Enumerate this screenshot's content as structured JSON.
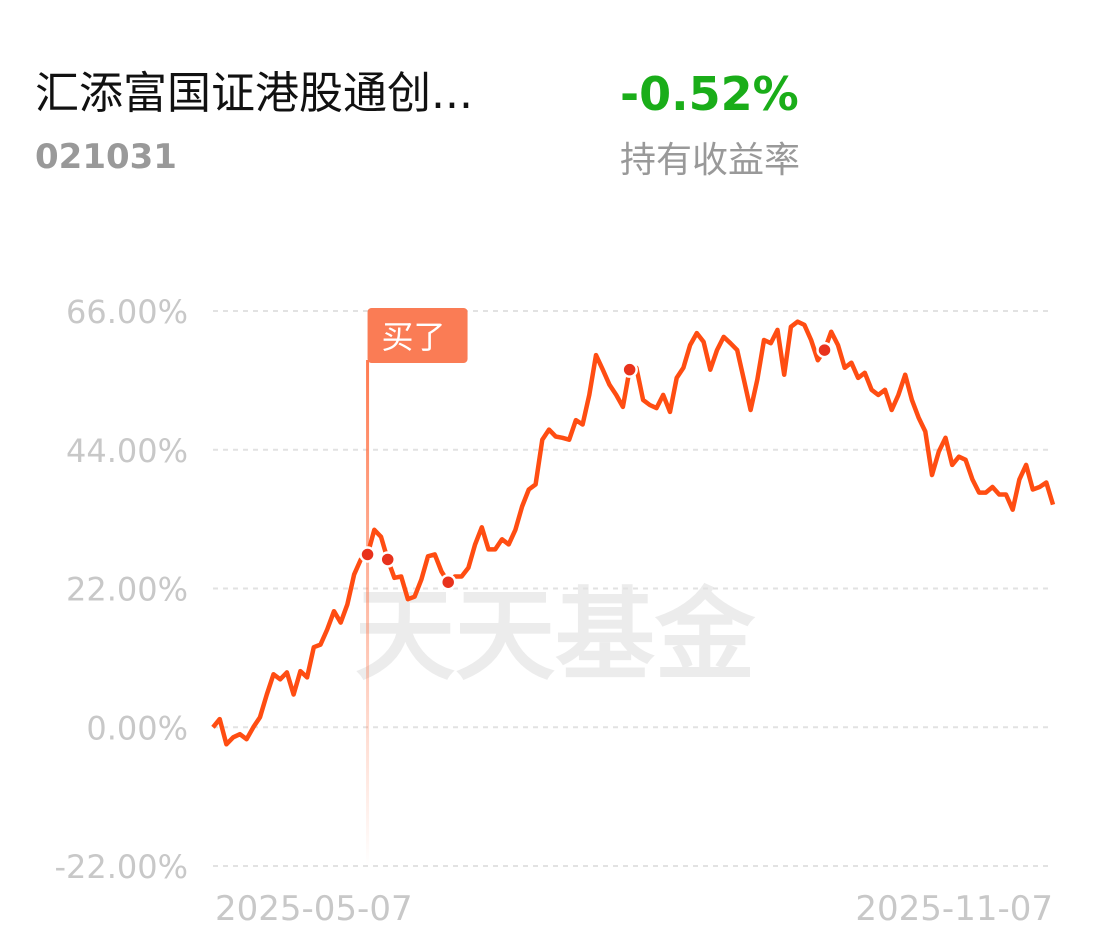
{
  "header": {
    "title": "汇添富国证港股通创...",
    "code": "021031",
    "return": "-0.52%",
    "return_label": "持有收益率"
  },
  "chart_data": {
    "type": "line",
    "watermark": "天天基金",
    "buy_label": "买了",
    "buy_index": 23,
    "trade_points": [
      23,
      26,
      35,
      62,
      91
    ],
    "color": "#ff4d12",
    "grid": true,
    "ylim": [
      -22,
      66
    ],
    "yticks": [
      {
        "value": 66,
        "label": "66.00%"
      },
      {
        "value": 44,
        "label": "44.00%"
      },
      {
        "value": 22,
        "label": "22.00%"
      },
      {
        "value": 0,
        "label": "0.00%"
      },
      {
        "value": -22,
        "label": "-22.00%"
      }
    ],
    "categories": [
      "2025-05-07",
      null,
      null,
      null,
      null,
      null,
      null,
      null,
      null,
      null,
      null,
      null,
      null,
      null,
      null,
      null,
      null,
      null,
      null,
      null,
      null,
      null,
      null,
      null,
      null,
      null,
      null,
      null,
      null,
      null,
      null,
      null,
      null,
      null,
      null,
      null,
      null,
      null,
      null,
      null,
      null,
      null,
      null,
      null,
      null,
      null,
      null,
      null,
      null,
      null,
      null,
      null,
      null,
      null,
      null,
      null,
      null,
      null,
      null,
      null,
      null,
      null,
      null,
      null,
      null,
      null,
      null,
      null,
      null,
      null,
      null,
      null,
      null,
      null,
      null,
      null,
      null,
      null,
      null,
      null,
      null,
      null,
      null,
      null,
      null,
      null,
      null,
      null,
      null,
      null,
      null,
      null,
      null,
      null,
      null,
      null,
      null,
      null,
      null,
      null,
      null,
      null,
      null,
      null,
      null,
      null,
      null,
      null,
      null,
      null,
      null,
      null,
      null,
      null,
      null,
      null,
      null,
      null,
      null,
      null,
      null,
      null,
      null,
      null,
      null,
      "2025-11-07"
    ],
    "values": [
      0,
      1.3,
      -2.7,
      -1.6,
      -1.1,
      -1.9,
      0,
      1.6,
      5.2,
      8.4,
      7.6,
      8.7,
      5.2,
      8.9,
      7.9,
      12.7,
      13.1,
      15.5,
      18.4,
      16.6,
      19.5,
      24.2,
      26.6,
      27.4,
      31.3,
      30.2,
      26.6,
      23.7,
      23.9,
      20.3,
      20.7,
      23.4,
      27.1,
      27.4,
      24.7,
      23.0,
      23.9,
      23.9,
      25.3,
      29.0,
      31.7,
      28.2,
      28.2,
      29.8,
      29.0,
      31.3,
      35.0,
      37.7,
      38.5,
      45.6,
      47.2,
      46.1,
      45.9,
      45.6,
      48.7,
      48.0,
      52.7,
      59.0,
      56.7,
      54.3,
      52.7,
      50.8,
      56.7,
      57.0,
      51.9,
      51.1,
      50.6,
      52.7,
      50.0,
      55.4,
      57.0,
      60.6,
      62.5,
      61.1,
      56.7,
      59.8,
      61.9,
      60.9,
      59.8,
      55.1,
      50.3,
      55.1,
      61.4,
      60.9,
      63.0,
      55.9,
      63.5,
      64.3,
      63.8,
      61.4,
      58.2,
      59.8,
      62.7,
      60.6,
      57.0,
      57.8,
      55.4,
      56.2,
      53.5,
      52.7,
      53.5,
      50.3,
      52.7,
      55.9,
      51.9,
      49.1,
      46.9,
      40.0,
      43.7,
      45.9,
      41.6,
      42.9,
      42.4,
      39.3,
      37.2,
      37.2,
      38.1,
      36.9,
      36.9,
      34.5,
      39.3,
      41.6,
      37.7,
      38.1,
      38.8,
      35.3
    ]
  }
}
